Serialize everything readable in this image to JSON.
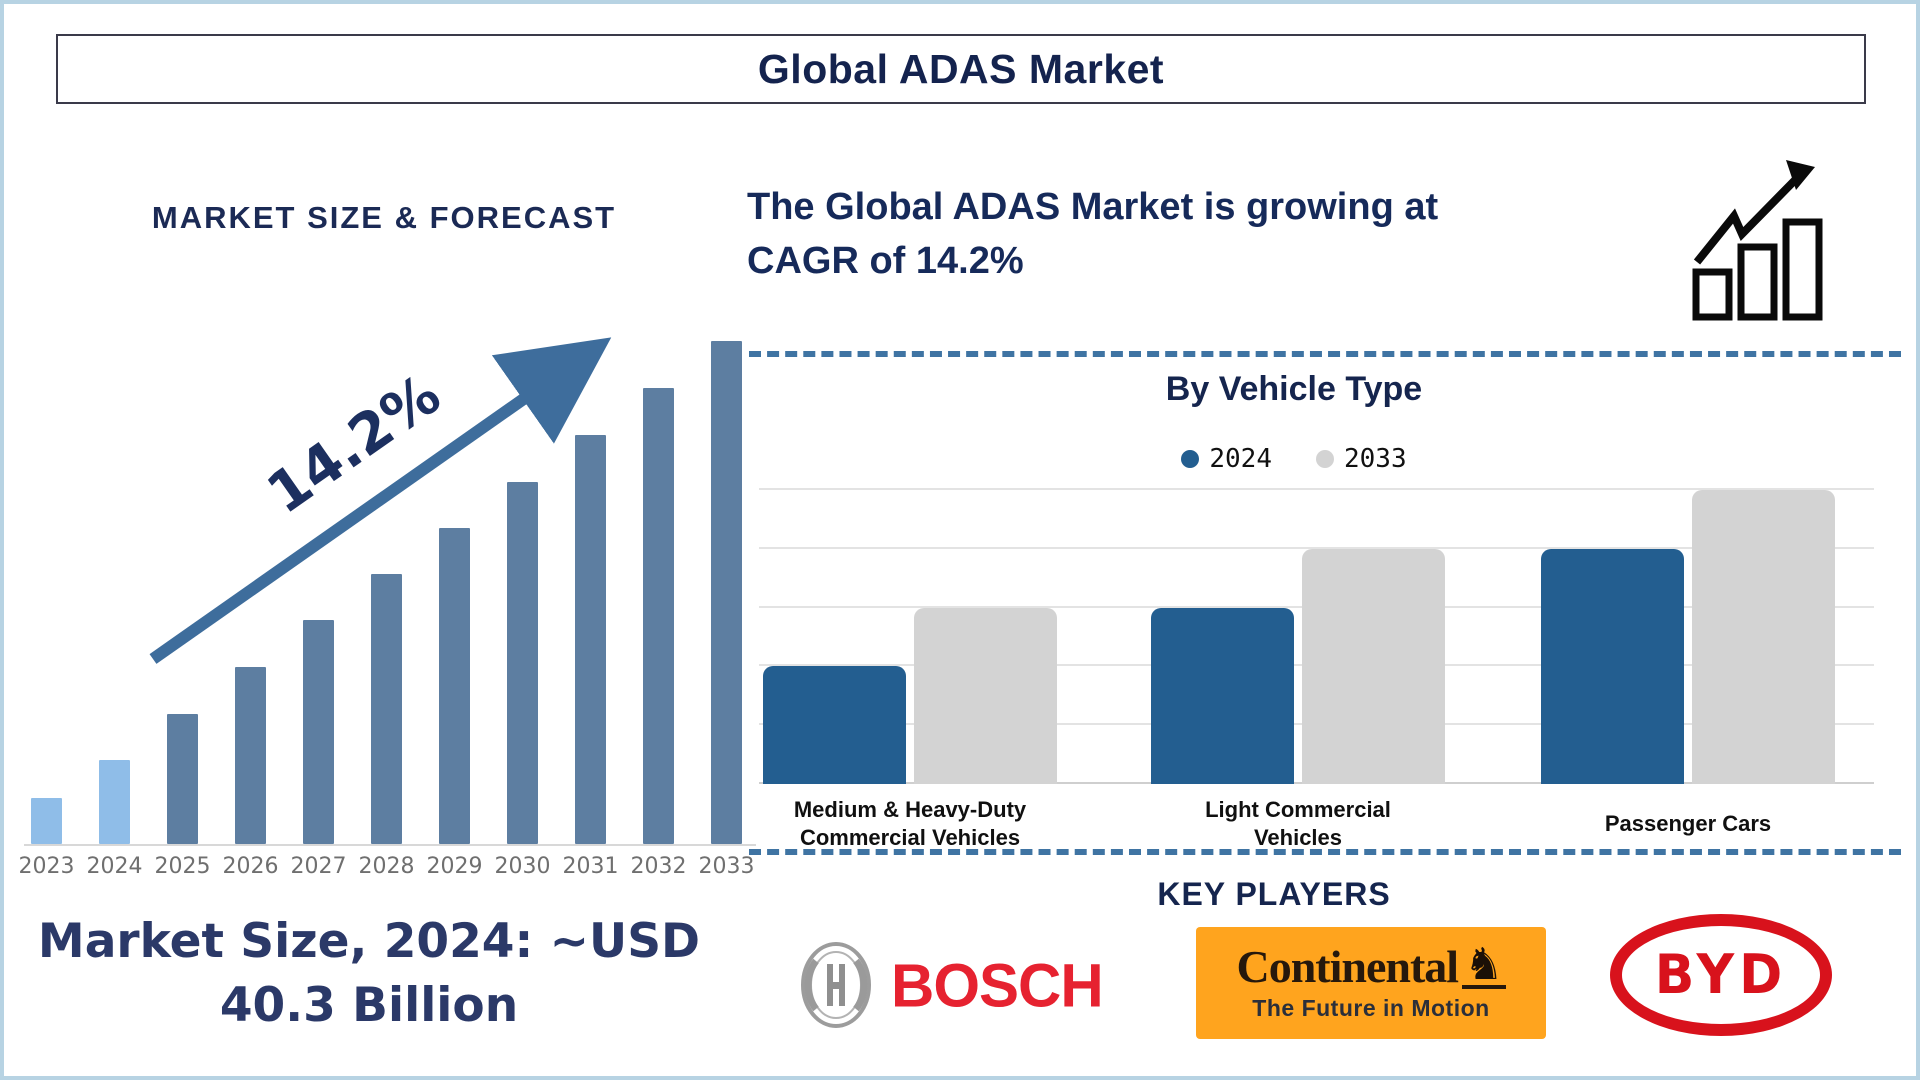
{
  "page": {
    "title": "Global ADAS Market",
    "background": "#ffffff",
    "border_color": "#b7d3e3",
    "accent_navy": "#16254f",
    "dashed_line_color": "#3f74a3"
  },
  "left_panel": {
    "heading": "MARKET SIZE & FORECAST",
    "growth_annotation": "14.2%",
    "caption_line1": "Market Size, 2024: ~USD",
    "caption_line2": "40.3 Billion"
  },
  "right_panel": {
    "growth_line1": "The Global ADAS Market is growing at",
    "growth_line2": "CAGR of 14.2%",
    "growth_icon": "bar-chart-rising-arrow"
  },
  "vehicle_section": {
    "title": "By Vehicle Type",
    "legend": [
      {
        "label": "2024",
        "color": "#235e90"
      },
      {
        "label": "2033",
        "color": "#d3d3d3"
      }
    ]
  },
  "key_players": {
    "heading": "KEY PLAYERS",
    "bosch": {
      "name": "BOSCH",
      "color": "#e62230",
      "emblem": "bosch-armature-circle"
    },
    "continental": {
      "name": "Continental",
      "tagline": "The Future in Motion",
      "background": "#ffa41e",
      "horse_glyph": "♞"
    },
    "byd": {
      "name": "BYD",
      "color": "#d8121c"
    }
  },
  "chart_data": [
    {
      "id": "forecast",
      "type": "bar",
      "title": "MARKET SIZE & FORECAST",
      "categories": [
        "2023",
        "2024",
        "2025",
        "2026",
        "2027",
        "2028",
        "2029",
        "2030",
        "2031",
        "2032",
        "2033"
      ],
      "values_relative": [
        46,
        84,
        130,
        177,
        224,
        270,
        316,
        362,
        409,
        456,
        503
      ],
      "unit": "relative bar height; no value axis shown",
      "annotation": "14.2%",
      "known_point": "2024 ≈ USD 40.3 Billion",
      "highlight_categories": [
        "2023",
        "2024"
      ],
      "colors": {
        "highlight": "#8fbde8",
        "default": "#5d7ea1",
        "axis": "#d8d8d8",
        "tick_label": "#6f6f6f"
      },
      "legend_position": "none",
      "grid": false
    },
    {
      "id": "by_vehicle_type",
      "type": "grouped_bar",
      "title": "By Vehicle Type",
      "categories": [
        [
          "Medium & Heavy-Duty",
          "Commercial Vehicles"
        ],
        [
          "Light Commercial",
          "Vehicles"
        ],
        [
          "Passenger Cars"
        ]
      ],
      "series": [
        {
          "name": "2024",
          "color": "#235e90",
          "values_gridline_units": [
            2,
            3,
            4
          ]
        },
        {
          "name": "2033",
          "color": "#d3d3d3",
          "values_gridline_units": [
            3,
            4,
            5
          ]
        }
      ],
      "unit": "gridline units; no numeric axis shown",
      "grid": true,
      "gridline_count": 6,
      "legend_position": "top-center"
    }
  ]
}
